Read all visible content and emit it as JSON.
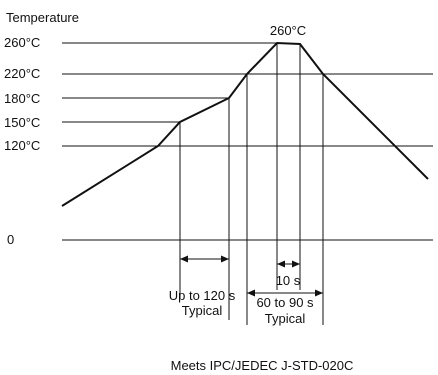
{
  "chart_data": {
    "type": "line",
    "title": "",
    "ylabel": "Temperature",
    "xlabel": "",
    "y_tick_labels": [
      "0",
      "120°C",
      "150°C",
      "180°C",
      "220°C",
      "260°C"
    ],
    "peak_label": "260°C",
    "profile_points_celsius": [
      {
        "t": 0,
        "temp": 35
      },
      {
        "t": 97,
        "temp": 120
      },
      {
        "t": 118,
        "temp": 150
      },
      {
        "t": 167,
        "temp": 180
      },
      {
        "t": 185,
        "temp": 220
      },
      {
        "t": 215,
        "temp": 260
      },
      {
        "t": 238,
        "temp": 259
      },
      {
        "t": 262,
        "temp": 220
      },
      {
        "t": 372,
        "temp": 85
      }
    ],
    "annotations": {
      "preheat": {
        "label_1": "Up to 120 s",
        "label_2": "Typical"
      },
      "above_220": {
        "label_1": "60 to 90 s",
        "label_2": "Typical"
      },
      "peak_time": {
        "label": "10 s"
      }
    },
    "footnote": "Meets IPC/JEDEC J-STD-020C",
    "grid": false,
    "colors": {
      "line": "#111111",
      "background": "#ffffff"
    }
  }
}
